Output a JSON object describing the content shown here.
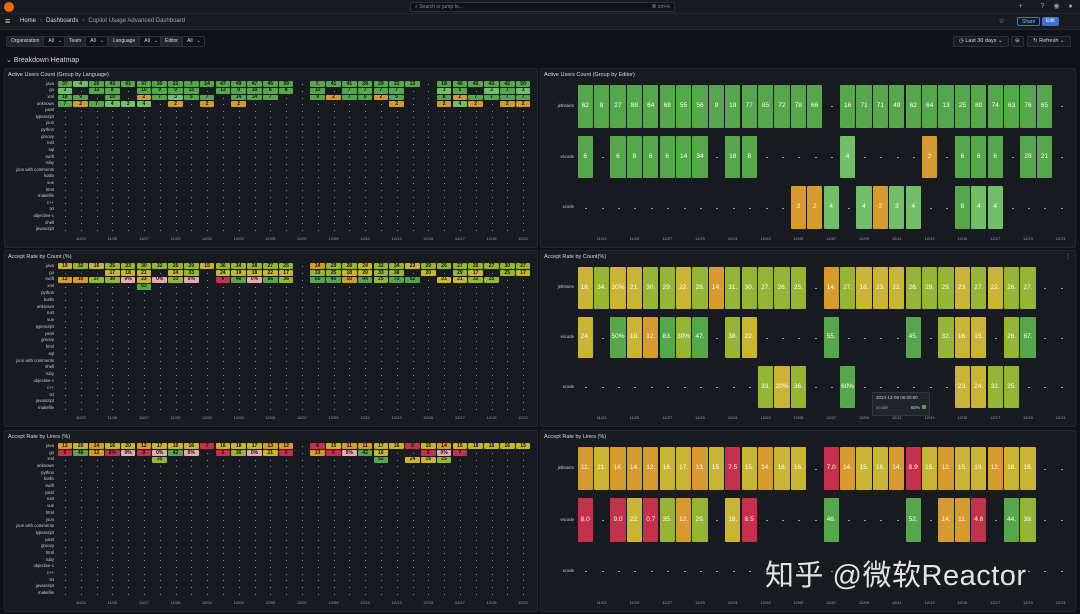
{
  "topbar": {
    "search_placeholder": "Search or jump to...",
    "search_shortcut": "⌘ ctrl+k"
  },
  "breadcrumb": {
    "home": "Home",
    "dashboards": "Dashboards",
    "current": "Copilot Usage Advanced Dashboard"
  },
  "header": {
    "share_label": "Share",
    "edit_label": "Edit"
  },
  "variables": [
    {
      "label": "Organization",
      "value": "All"
    },
    {
      "label": "Team",
      "value": "All"
    },
    {
      "label": "Language",
      "value": "All"
    },
    {
      "label": "Editor",
      "value": "All"
    }
  ],
  "time_picker": {
    "label": "Last 30 days"
  },
  "refresh": {
    "label": "Refresh"
  },
  "row_title": "Breakdown Heatmap",
  "x_labels": [
    "11/23",
    "11/25",
    "11/27",
    "11/29",
    "12/01",
    "12/03",
    "12/05",
    "12/07",
    "12/09",
    "12/11",
    "12/13",
    "12/15",
    "12/17",
    "12/19",
    "12/21"
  ],
  "colors": {
    "green": "#56a64b",
    "lightgreen": "#73bf69",
    "olive": "#96b535",
    "yellow": "#c9b434",
    "orange": "#d69a2e",
    "red": "#c4314b",
    "pink": "#e8a8b0"
  },
  "panels": {
    "lang_count": {
      "title": "Active Users Count (Group by Language)",
      "rows": [
        "java",
        "go",
        "xml",
        "unknown",
        "yaml",
        "typescript",
        "json",
        "python",
        "groovy",
        "rust",
        "sql",
        "swift",
        "ruby",
        "json with comments",
        "kotlin",
        "vue",
        "html",
        "makefile",
        "c++",
        "txt",
        "objective-c",
        "shell",
        "javascript"
      ],
      "values": [
        [
          "37",
          "4",
          "20",
          "43",
          "41",
          "37",
          "35",
          "23",
          "7",
          "14",
          "47",
          "49",
          "47",
          "45",
          "39",
          "",
          "7.",
          "41",
          "41",
          "28",
          "29",
          "32",
          "13",
          "",
          "18",
          "46",
          "45",
          "43",
          "42",
          "50"
        ],
        [
          "3",
          "",
          "13",
          "8",
          "",
          "10",
          "9",
          "9",
          "15",
          "",
          "13",
          "9",
          "10",
          "8",
          "8",
          "",
          "10",
          "",
          "7",
          "7",
          "7",
          "7",
          "",
          "",
          "3",
          "5",
          "",
          "3",
          "7",
          "3"
        ],
        [
          "18",
          "9",
          "",
          "10",
          "",
          "2",
          "7",
          "3",
          "5",
          "7",
          "",
          "14",
          "14",
          "7",
          "",
          "",
          "9",
          "2",
          "7",
          "5",
          "2",
          "5",
          "",
          "",
          "8",
          "2",
          "7",
          "7",
          "7",
          "7"
        ],
        [
          "7",
          "2",
          "7",
          "4",
          "3",
          "4",
          "",
          "2",
          "",
          "2",
          "",
          "2",
          "",
          "",
          "",
          "",
          "",
          "",
          "",
          "",
          "",
          "2",
          "",
          "",
          "2",
          "4",
          "2",
          "",
          "2",
          "2"
        ]
      ]
    },
    "editor_count": {
      "title": "Active Users Count (Group by Editor)",
      "rows": [
        "jetbrains",
        "vscode",
        "xcode"
      ],
      "values": [
        [
          "62",
          "8",
          "27",
          "88",
          "64",
          "68",
          "55",
          "56",
          "9",
          "19",
          "77",
          "85",
          "72",
          "78",
          "66",
          "",
          "16",
          "71",
          "71",
          "49",
          "62",
          "64",
          "13",
          "25",
          "80",
          "74",
          "63",
          "76",
          "65"
        ],
        [
          "6",
          "",
          "6",
          "8",
          "6",
          "6",
          "14",
          "34",
          "",
          "18",
          "8",
          "",
          "",
          "",
          "",
          "",
          "4",
          "",
          "",
          "",
          "",
          "2",
          "",
          "6",
          "6",
          "6",
          "",
          "28",
          "21"
        ],
        [
          "",
          "",
          "",
          "",
          "",
          "",
          "",
          "",
          "",
          "",
          "",
          "",
          "",
          "2",
          "2",
          "4",
          "",
          "4",
          "2",
          "3",
          "4",
          "",
          "",
          "8",
          "4",
          "4"
        ]
      ]
    },
    "lang_rate_count": {
      "title": "Accept Rate by Count (%)",
      "rows": [
        "java",
        "go",
        "swift",
        "xml",
        "python",
        "kotlin",
        "unknown",
        "rust",
        "vue",
        "typescript",
        "yaml",
        "groovy",
        "html",
        "sql",
        "json with comments",
        "shell",
        "ruby",
        "objective-c",
        "c++",
        "txt",
        "javascript",
        "makefile"
      ],
      "values": [
        [
          "19",
          "32",
          "16",
          "25",
          "33",
          "30",
          "32",
          "26",
          "29",
          "15",
          "36",
          "34",
          "28",
          "27",
          "25",
          "",
          "14",
          "29",
          "28",
          "24",
          "32",
          "34",
          "23",
          "29",
          "26",
          "27",
          "26",
          "27",
          "30",
          "27"
        ],
        [
          "",
          "",
          "",
          "17",
          "18",
          "21",
          "",
          "24",
          "33",
          "",
          "24",
          "19",
          "18",
          "22",
          "17",
          "",
          "33",
          "25",
          "18",
          "20",
          "33",
          "38",
          "",
          "20",
          "",
          "29",
          "17",
          "",
          "25",
          "17"
        ],
        [
          "12",
          "10",
          "37",
          "30",
          "0%",
          "23",
          "0%",
          "33",
          "0%",
          "",
          "9",
          "40",
          "0%",
          "56",
          "38",
          "",
          "65",
          "45",
          "10",
          "44",
          "25",
          "73",
          "52",
          "",
          "21",
          "21",
          "32",
          "25",
          "",
          ""
        ],
        [
          "",
          "",
          "",
          "",
          "",
          "63",
          "",
          "",
          "",
          "",
          "",
          "",
          "",
          "",
          "",
          "",
          "",
          "",
          ""
        ]
      ]
    },
    "editor_rate_count": {
      "title": "Accept Rate by Count(%)",
      "rows": [
        "jetbrains",
        "vscode",
        "xcode"
      ],
      "values": [
        [
          "18.",
          "34.",
          "20%",
          "21.",
          "30.",
          "29.",
          "22.",
          "28.",
          "14.",
          "31.",
          "30.",
          "27.",
          "26.",
          "25.",
          "",
          "14.",
          "27.",
          "18.",
          "23.",
          "22.",
          "26.",
          "29.",
          "29.",
          "23.",
          "27.",
          "22.",
          "26.",
          "27."
        ],
        [
          "24.",
          "",
          "50%",
          "18.",
          "12.",
          "83.",
          "30%",
          "47.",
          "",
          "38.",
          "22.",
          "",
          "",
          "",
          "",
          "55.",
          "",
          "",
          "",
          "",
          "45.",
          "",
          "32.",
          "16.",
          "15.",
          "",
          "26.",
          "67."
        ],
        [
          "",
          "",
          "",
          "",
          "",
          "",
          "",
          "",
          "",
          "",
          "",
          "33.",
          "20%",
          "36.",
          "",
          "",
          "60%",
          "",
          "",
          "",
          "",
          "",
          "",
          "23.",
          "24.",
          "32.",
          "25."
        ]
      ]
    },
    "lang_rate_lines": {
      "title": "Accept Rate by Lines (%)",
      "rows": [
        "java",
        "go",
        "xml",
        "unknown",
        "python",
        "kotlin",
        "swift",
        "yaml",
        "rust",
        "vue",
        "html",
        "json",
        "json with comments",
        "typescript",
        "yaml",
        "groovy",
        "html",
        "ruby",
        "objective-c",
        "c++",
        "txt",
        "javascript",
        "makefile"
      ],
      "values": [
        [
          "13",
          "20",
          "14",
          "16",
          "20",
          "12",
          "17",
          "18",
          "16",
          "7",
          "16",
          "18",
          "17",
          "13",
          "12",
          "",
          "6",
          "15",
          "11",
          "11",
          "17",
          "16",
          "8",
          "15",
          "14",
          "15",
          "18",
          "18",
          "16",
          "15"
        ],
        [
          "5",
          "40",
          "12",
          "6%",
          "0%",
          "9",
          "0%",
          "42",
          "0%",
          "",
          "2",
          "30",
          "0%",
          "21",
          "5",
          "",
          "13",
          "5",
          "0%",
          "42",
          "16",
          "",
          "",
          "5",
          "0%",
          "7",
          "",
          "",
          "",
          ""
        ],
        [
          "",
          "",
          "",
          "",
          "",
          "",
          "35",
          "",
          "",
          "",
          "",
          "",
          "",
          "",
          "",
          "",
          "",
          "",
          "",
          "",
          "52",
          "",
          "24",
          "16",
          "25",
          "",
          "",
          "",
          "",
          ""
        ]
      ]
    },
    "editor_rate_lines": {
      "title": "Accept Rate by Lines (%)",
      "rows": [
        "jetbrains",
        "vscode",
        "xcode"
      ],
      "values": [
        [
          "11.",
          "21.",
          "14.",
          "14.",
          "12.",
          "18.",
          "17.",
          "13.",
          "15.",
          "7.5",
          "15.",
          "14.",
          "18.",
          "16.",
          "",
          "7.0",
          "14.",
          "15.",
          "16.",
          "14.",
          "8.9",
          "15.",
          "12.",
          "15.",
          "19.",
          "12.",
          "18.",
          "16."
        ],
        [
          "8.0",
          "",
          "9.0",
          "22.",
          "0.7",
          "35.",
          "12.",
          "29.",
          "",
          "18.",
          "6.5",
          "",
          "",
          "",
          "",
          "46.",
          "",
          "",
          "",
          "",
          "52.",
          "",
          "14.",
          "11.",
          "4.6",
          "",
          "44.",
          "39."
        ],
        [
          "",
          "",
          "",
          "",
          "",
          "",
          "",
          "",
          "",
          "",
          "",
          "",
          "",
          "",
          "",
          "",
          "",
          "",
          "",
          "",
          "",
          "",
          "",
          "",
          "",
          "",
          "",
          ""
        ]
      ]
    }
  },
  "tooltip": {
    "time": "2024-12-08 06:00:00",
    "series": "xcode",
    "value": "60%"
  },
  "watermark": "知乎 @微软Reactor"
}
